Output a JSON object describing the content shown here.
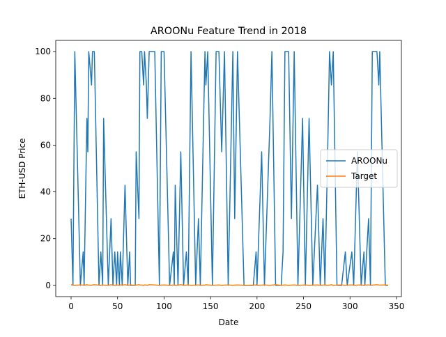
{
  "chart_data": {
    "type": "line",
    "title": "AROONu Feature Trend in 2018",
    "x_label": "Date",
    "y_label": "ETH-USD Price",
    "x": [
      0,
      2,
      4,
      10,
      13,
      14,
      17,
      18,
      19,
      22,
      23,
      25,
      30,
      32,
      34,
      35,
      40,
      43,
      45,
      47,
      49,
      50,
      52,
      53,
      55,
      58,
      61,
      63,
      64,
      69,
      70,
      73,
      74,
      76,
      78,
      79,
      81,
      82,
      84,
      90,
      95,
      97,
      100,
      106,
      110,
      111,
      112,
      115,
      118,
      121,
      124,
      126,
      129,
      134,
      137,
      139,
      144,
      145,
      147,
      152,
      156,
      159,
      162,
      165,
      169,
      174,
      176,
      179,
      186,
      196,
      199,
      200,
      205,
      208,
      214,
      216,
      220,
      226,
      228,
      230,
      234,
      237,
      240,
      244,
      249,
      252,
      256,
      260,
      265,
      268,
      271,
      273,
      276,
      278,
      280,
      282,
      286,
      291,
      295,
      297,
      302,
      304,
      308,
      312,
      315,
      316,
      320,
      322,
      324,
      329,
      331,
      332,
      338,
      341
    ],
    "series": [
      {
        "name": "AROONu",
        "color": "#1f77b4",
        "values": [
          28.57,
          0,
          100,
          0,
          14.29,
          0,
          71.43,
          57.14,
          100,
          85.71,
          100,
          100,
          0,
          14.29,
          0,
          71.43,
          0,
          28.57,
          0,
          14.29,
          0,
          14.29,
          0,
          14.29,
          0,
          42.86,
          0,
          14.29,
          0,
          0,
          57.14,
          28.57,
          100,
          100,
          85.71,
          100,
          85.71,
          71.43,
          100,
          100,
          0,
          100,
          100,
          0,
          14.29,
          0,
          42.86,
          0,
          57.14,
          0,
          14.29,
          0,
          100,
          0,
          28.57,
          0,
          100,
          85.71,
          100,
          0,
          100,
          100,
          57.14,
          100,
          0,
          100,
          28.57,
          100,
          0,
          0,
          14.29,
          0,
          57.14,
          0,
          71.43,
          100,
          0,
          0,
          14.29,
          100,
          100,
          28.57,
          100,
          0,
          71.43,
          0,
          71.43,
          0,
          42.86,
          0,
          28.57,
          0,
          57.14,
          100,
          85.71,
          100,
          0,
          0,
          14.29,
          0,
          14.29,
          0,
          57.14,
          0,
          14.29,
          0,
          28.57,
          0,
          100,
          100,
          85.71,
          100,
          0,
          0
        ]
      },
      {
        "name": "Target",
        "color": "#ff7f0e",
        "values": [
          0.3,
          0.1,
          0,
          0.2,
          0.1,
          0,
          0.3,
          0.2,
          0.1,
          0,
          0.2,
          0.3,
          0.1,
          0,
          0.2,
          0.1,
          0,
          0.3,
          0.1,
          0,
          0.2,
          0.1,
          0,
          0.2,
          0.1,
          0.3,
          0,
          0.1,
          0.2,
          0,
          0.1,
          0.3,
          0.2,
          0.1,
          0,
          0.2,
          0.1,
          0,
          0.3,
          0.2,
          0,
          0.1,
          0.2,
          0,
          0.1,
          0.2,
          0,
          0.1,
          0.3,
          0,
          0.1,
          0.2,
          0,
          0.1,
          0.2,
          0,
          0.1,
          0.3,
          0.2,
          0,
          0.1,
          0.2,
          0,
          0.1,
          0.2,
          0,
          0.1,
          0.2,
          0,
          0.1,
          0.2,
          0,
          0.1,
          0.2,
          0,
          0.1,
          0.3,
          0,
          0.1,
          0.2,
          0,
          0.1,
          0.2,
          0,
          0.1,
          0.2,
          0,
          0.1,
          0.2,
          0,
          0.1,
          0.2,
          0,
          0.1,
          0.3,
          0,
          0.1,
          0.2,
          0,
          0.1,
          0.2,
          0,
          0.1,
          0.2,
          0,
          0.1,
          0.2,
          0,
          0.1,
          0.3,
          0.2,
          0.1,
          0.2,
          0.1
        ]
      }
    ],
    "xlim": [
      -16.5,
      355.3
    ],
    "ylim": [
      -4.8,
      104.8
    ],
    "xticks": [
      0,
      50,
      100,
      150,
      200,
      250,
      300,
      350
    ],
    "yticks": [
      0,
      20,
      40,
      60,
      80,
      100
    ],
    "legend": "center right"
  }
}
